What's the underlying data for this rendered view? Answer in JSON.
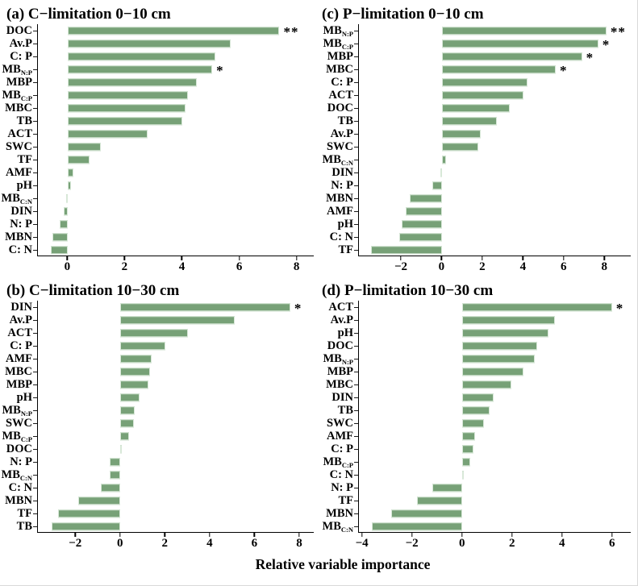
{
  "figure": {
    "xlabel": "Relative variable importance",
    "bar_color": "#77a177",
    "bar_edge_color": "#d8e8d8",
    "axis_color": "#000000",
    "background": "#ffffff"
  },
  "chart_data": [
    {
      "id": "a",
      "type": "bar",
      "orientation": "horizontal",
      "title": "(a) C−limitation 0−10 cm",
      "xlim": [
        -1.05,
        8.6
      ],
      "xticks": [
        0,
        2,
        4,
        6,
        8
      ],
      "categories": [
        "DOC",
        "Av.P",
        "C: P",
        "MB_N:P",
        "MBP",
        "MB_C:P",
        "MBC",
        "TB",
        "ACT",
        "SWC",
        "TF",
        "AMF",
        "pH",
        "MB_C:N",
        "DIN",
        "N: P",
        "MBN",
        "C: N"
      ],
      "values": [
        7.4,
        5.7,
        5.15,
        5.05,
        4.5,
        4.2,
        4.1,
        4.0,
        2.8,
        1.15,
        0.75,
        0.2,
        0.1,
        -0.07,
        -0.16,
        -0.3,
        -0.53,
        -0.6
      ],
      "significance": [
        "**",
        "",
        "",
        "*",
        "",
        "",
        "",
        "",
        "",
        "",
        "",
        "",
        "",
        "",
        "",
        "",
        "",
        ""
      ]
    },
    {
      "id": "b",
      "type": "bar",
      "orientation": "horizontal",
      "title": "(b) C−limitation 10−30 cm",
      "xlim": [
        -3.7,
        8.65
      ],
      "xticks": [
        -2,
        0,
        2,
        4,
        6,
        8
      ],
      "categories": [
        "DIN",
        "Av.P",
        "ACT",
        "C: P",
        "AMF",
        "MBC",
        "MBP",
        "pH",
        "MB_N:P",
        "SWC",
        "MB_C:P",
        "DOC",
        "N: P",
        "MB_C:N",
        "C: N",
        "MBN",
        "TF",
        "TB"
      ],
      "values": [
        7.6,
        5.1,
        3.0,
        2.0,
        1.38,
        1.32,
        1.24,
        0.86,
        0.65,
        0.6,
        0.38,
        0.06,
        -0.5,
        -0.5,
        -0.9,
        -1.9,
        -2.78,
        -3.1
      ],
      "significance": [
        "*",
        "",
        "",
        "",
        "",
        "",
        "",
        "",
        "",
        "",
        "",
        "",
        "",
        "",
        "",
        "",
        "",
        ""
      ]
    },
    {
      "id": "c",
      "type": "bar",
      "orientation": "horizontal",
      "title": "(c) P−limitation 0−10 cm",
      "xlim": [
        -4.1,
        9.3
      ],
      "xticks": [
        -2,
        0,
        2,
        4,
        6,
        8
      ],
      "categories": [
        "MB_N:P",
        "MB_C:P",
        "MBP",
        "MBC",
        "C: P",
        "ACT",
        "DOC",
        "TB",
        "Av.P",
        "SWC",
        "MB_C:N",
        "DIN",
        "N: P",
        "MBN",
        "AMF",
        "pH",
        "C: N",
        "TF"
      ],
      "values": [
        8.1,
        7.7,
        6.9,
        5.6,
        4.2,
        4.0,
        3.35,
        2.7,
        1.9,
        1.8,
        0.2,
        -0.1,
        -0.5,
        -1.6,
        -1.8,
        -2.0,
        -2.1,
        -3.5
      ],
      "significance": [
        "**",
        "*",
        "*",
        "*",
        "",
        "",
        "",
        "",
        "",
        "",
        "",
        "",
        "",
        "",
        "",
        "",
        "",
        ""
      ]
    },
    {
      "id": "d",
      "type": "bar",
      "orientation": "horizontal",
      "title": "(d) P−limitation 10−30 cm",
      "xlim": [
        -4.15,
        6.75
      ],
      "xticks": [
        -4,
        -2,
        0,
        2,
        4,
        6
      ],
      "categories": [
        "ACT",
        "Av.P",
        "pH",
        "DOC",
        "MB_N:P",
        "MBP",
        "MBC",
        "DIN",
        "TB",
        "SWC",
        "AMF",
        "C: P",
        "MB_C:P",
        "C: N",
        "N: P",
        "TF",
        "MBN",
        "MB_C:N"
      ],
      "values": [
        6.0,
        3.7,
        3.45,
        3.0,
        2.9,
        2.45,
        1.95,
        1.25,
        1.1,
        0.85,
        0.5,
        0.45,
        0.3,
        0.03,
        -1.2,
        -1.82,
        -2.85,
        -3.63
      ],
      "significance": [
        "*",
        "",
        "",
        "",
        "",
        "",
        "",
        "",
        "",
        "",
        "",
        "",
        "",
        "",
        "",
        "",
        "",
        ""
      ]
    }
  ]
}
